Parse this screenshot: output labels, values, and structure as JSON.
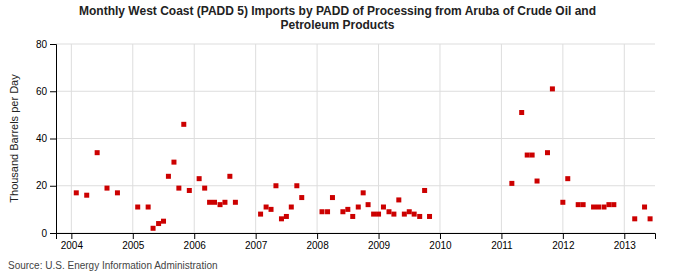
{
  "chart_data": {
    "type": "scatter",
    "title": "Monthly West Coast (PADD 5) Imports by PADD of Processing from Aruba of Crude Oil and\nPetroleum Products",
    "ylabel": "Thousand Barrels per Day",
    "source": "Source: U.S. Energy Information Administration",
    "color": "#cc0000",
    "marker": "square",
    "grid": true,
    "xlim": [
      2003.75,
      2013.5
    ],
    "ylim": [
      0,
      80
    ],
    "xticks": [
      2004,
      2005,
      2006,
      2007,
      2008,
      2009,
      2010,
      2011,
      2012,
      2013
    ],
    "yticks": [
      0,
      20,
      40,
      60,
      80
    ],
    "x": [
      2004.08,
      2004.25,
      2004.42,
      2004.58,
      2004.75,
      2005.08,
      2005.25,
      2005.33,
      2005.42,
      2005.5,
      2005.58,
      2005.67,
      2005.75,
      2005.83,
      2005.92,
      2006.08,
      2006.17,
      2006.25,
      2006.33,
      2006.42,
      2006.5,
      2006.58,
      2006.67,
      2007.08,
      2007.17,
      2007.25,
      2007.33,
      2007.42,
      2007.5,
      2007.58,
      2007.67,
      2007.75,
      2008.08,
      2008.17,
      2008.25,
      2008.42,
      2008.5,
      2008.58,
      2008.67,
      2008.75,
      2008.83,
      2008.92,
      2009.0,
      2009.08,
      2009.17,
      2009.25,
      2009.33,
      2009.42,
      2009.5,
      2009.58,
      2009.67,
      2009.75,
      2009.83,
      2011.17,
      2011.33,
      2011.42,
      2011.5,
      2011.58,
      2011.75,
      2011.83,
      2012.0,
      2012.08,
      2012.25,
      2012.33,
      2012.5,
      2012.58,
      2012.67,
      2012.75,
      2012.83,
      2013.17,
      2013.33,
      2013.42
    ],
    "values": [
      17,
      16,
      34,
      19,
      17,
      11,
      11,
      2,
      4,
      5,
      24,
      30,
      19,
      46,
      18,
      23,
      19,
      13,
      13,
      12,
      13,
      24,
      13,
      8,
      11,
      10,
      20,
      6,
      7,
      11,
      20,
      15,
      9,
      9,
      15,
      9,
      10,
      7,
      11,
      17,
      12,
      8,
      8,
      11,
      9,
      8,
      14,
      8,
      9,
      8,
      7,
      18,
      7,
      21,
      51,
      33,
      33,
      22,
      34,
      61,
      13,
      23,
      12,
      12,
      11,
      11,
      11,
      12,
      12,
      6,
      11,
      6
    ]
  }
}
